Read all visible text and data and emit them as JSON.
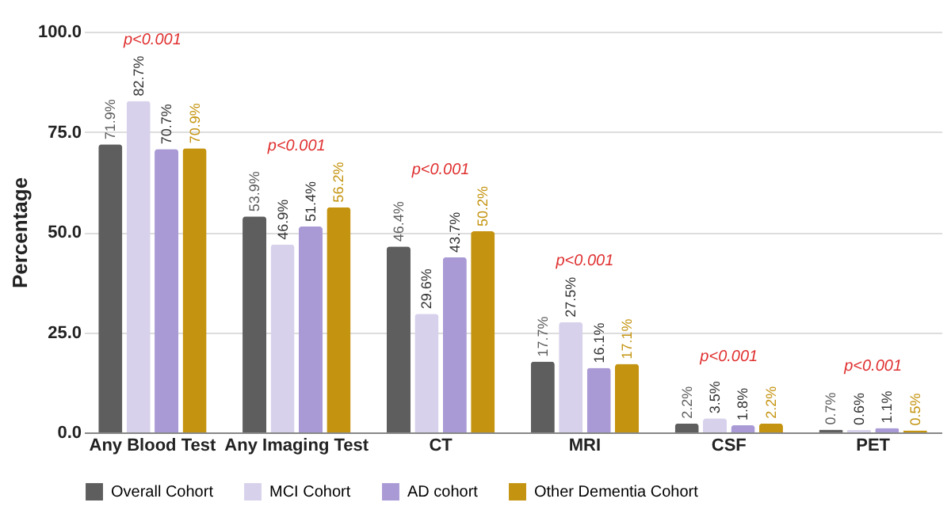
{
  "chart_data": {
    "type": "bar",
    "ylabel": "Percentage",
    "categories": [
      "Any Blood Test",
      "Any Imaging Test",
      "CT",
      "MRI",
      "CSF",
      "PET"
    ],
    "series": [
      {
        "name": "Overall Cohort",
        "color": "#5e5e5e",
        "values": [
          71.9,
          53.9,
          46.4,
          17.7,
          2.2,
          0.7
        ],
        "value_labels": [
          "71.9%",
          "53.9%",
          "46.4%",
          "17.7%",
          "2.2%",
          "0.7%"
        ]
      },
      {
        "name": "MCI Cohort",
        "color": "#d8d1ec",
        "values": [
          82.7,
          46.9,
          29.6,
          27.5,
          3.5,
          0.6
        ],
        "value_labels": [
          "82.7%",
          "46.9%",
          "29.6%",
          "27.5%",
          "3.5%",
          "0.6%"
        ]
      },
      {
        "name": "AD cohort",
        "color": "#a99ad6",
        "values": [
          70.7,
          51.4,
          43.7,
          16.1,
          1.8,
          1.1
        ],
        "value_labels": [
          "70.7%",
          "51.4%",
          "43.7%",
          "16.1%",
          "1.8%",
          "1.1%"
        ]
      },
      {
        "name": "Other Dementia Cohort",
        "color": "#c4930f",
        "values": [
          70.9,
          56.2,
          50.2,
          17.1,
          2.2,
          0.5
        ],
        "value_labels": [
          "70.9%",
          "56.2%",
          "50.2%",
          "17.1%",
          "2.2%",
          "0.5%"
        ]
      }
    ],
    "ylim": [
      0,
      100
    ],
    "yticks": [
      {
        "value": 0,
        "label": "0.0"
      },
      {
        "value": 25,
        "label": "25.0"
      },
      {
        "value": 50,
        "label": "50.0"
      },
      {
        "value": 75,
        "label": "75.0"
      },
      {
        "value": 100,
        "label": "100.0"
      }
    ],
    "grid": "y",
    "legend": "bottom",
    "annotations": [
      "p<0.001",
      "p<0.001",
      "p<0.001",
      "p<0.001",
      "p<0.001",
      "p<0.001"
    ]
  }
}
